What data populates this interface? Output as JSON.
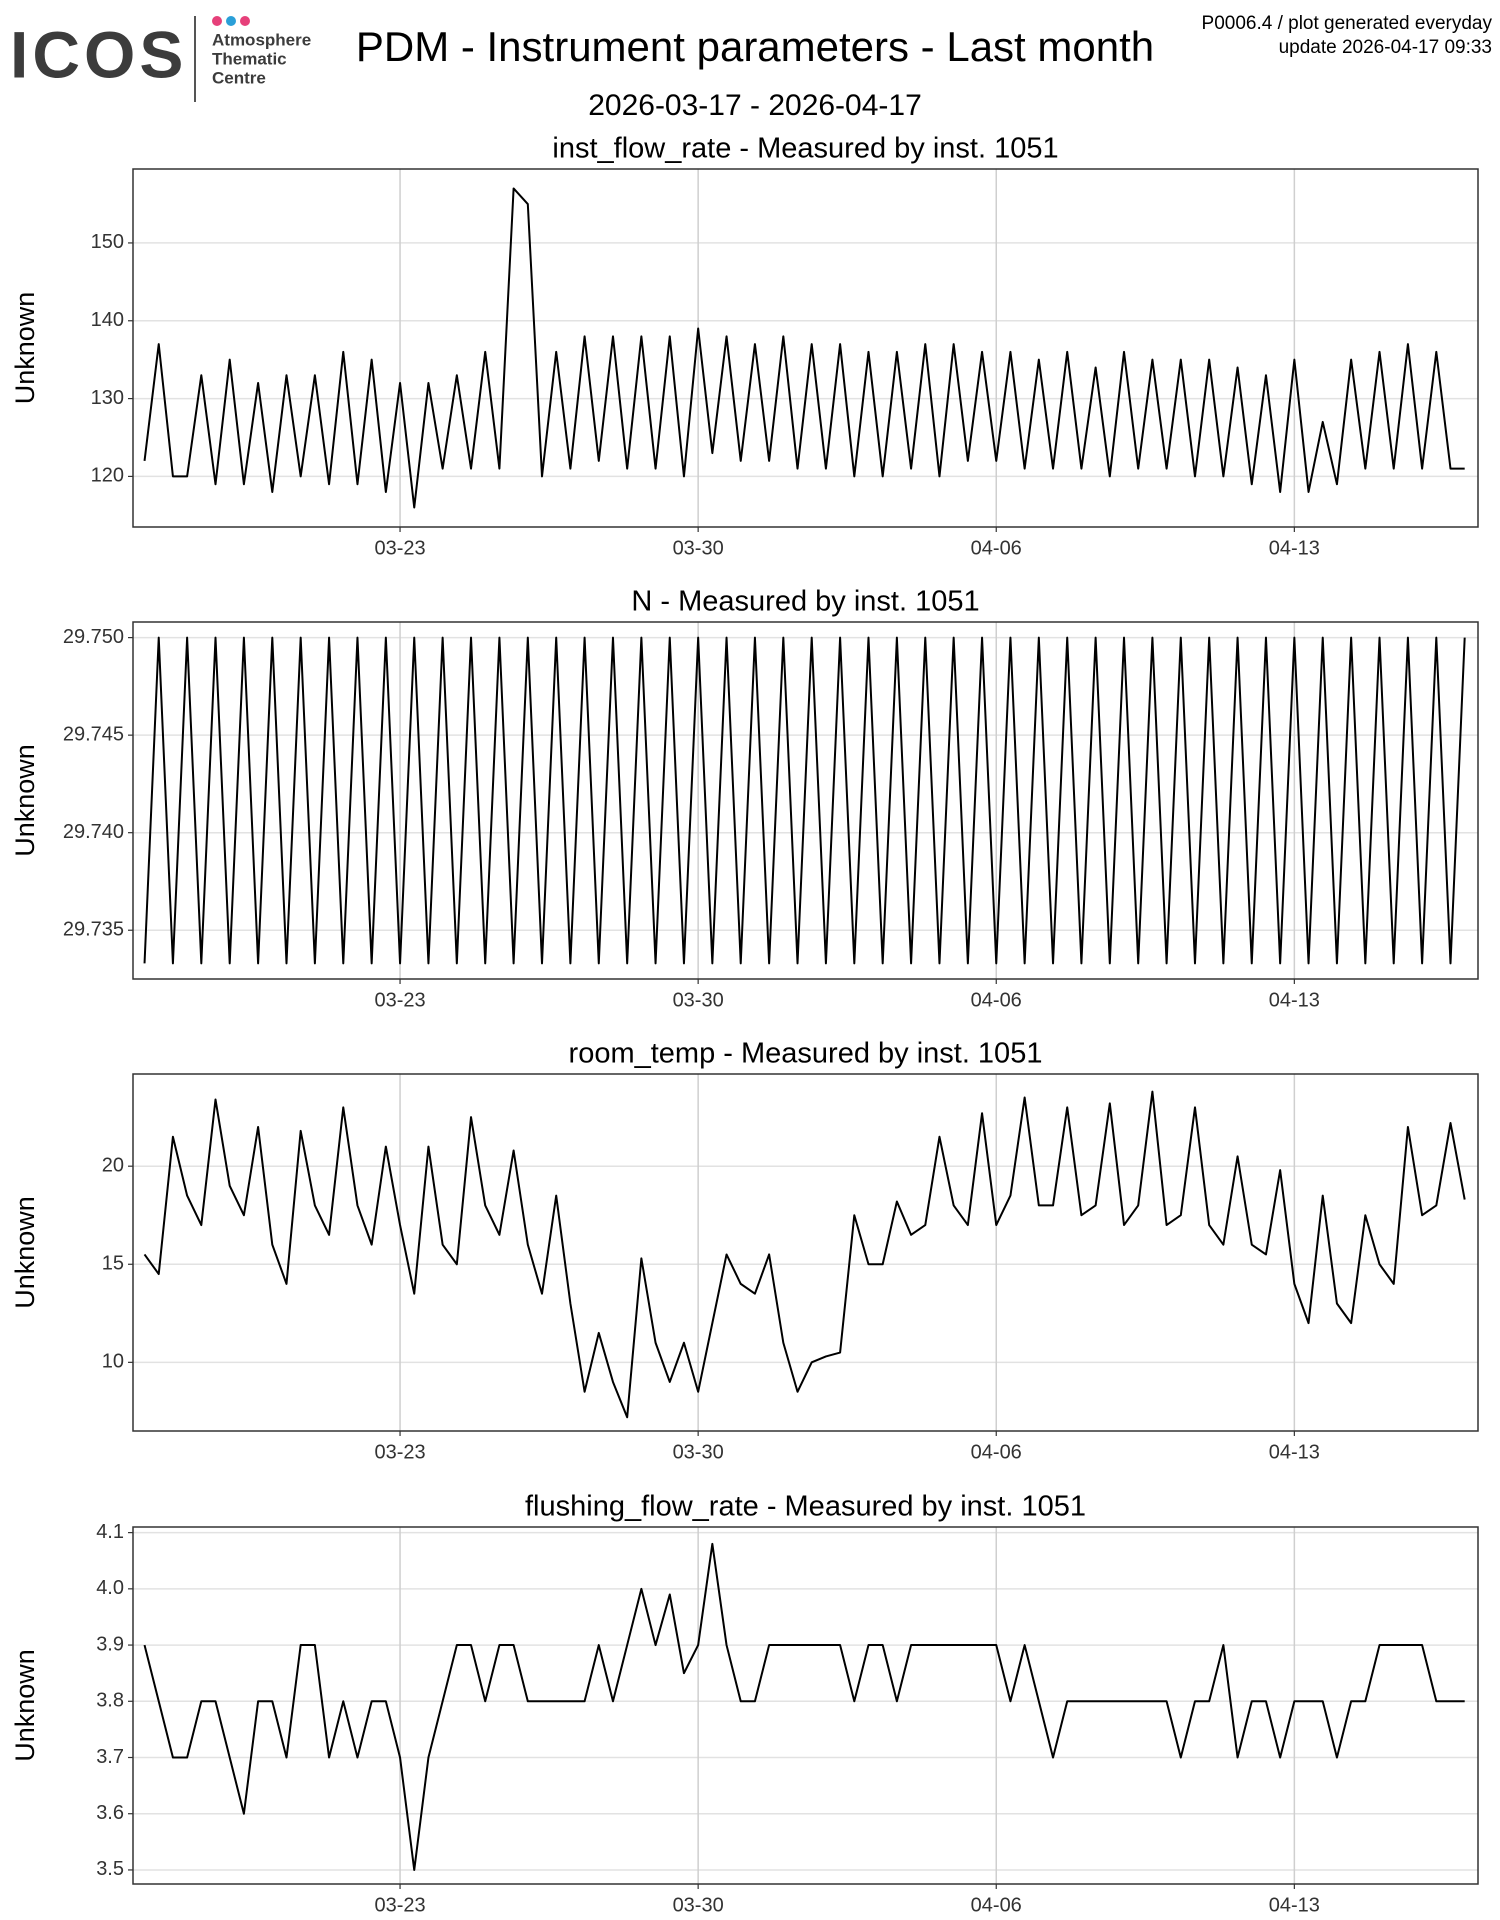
{
  "header": {
    "logo": "ICOS",
    "logo_subtitle": [
      "Atmosphere",
      "Thematic",
      "Centre"
    ],
    "title": "PDM - Instrument parameters - Last month",
    "subtitle": "2026-03-17 - 2026-04-17",
    "info": [
      "P0006.4 / plot generated everyday",
      "update  2026-04-17 09:33"
    ]
  },
  "chart_data": [
    {
      "type": "line",
      "title": "inst_flow_rate - Measured by inst. 1051",
      "y_label": "Unknown",
      "color": "#000000",
      "grid": true,
      "x": [
        "03-17 00:00",
        "03-17 08:00",
        "03-17 16:00",
        "03-18 00:00",
        "03-18 08:00",
        "03-18 16:00",
        "03-19 00:00",
        "03-19 08:00",
        "03-19 16:00",
        "03-20 00:00",
        "03-20 08:00",
        "03-20 16:00",
        "03-21 00:00",
        "03-21 08:00",
        "03-21 16:00",
        "03-22 00:00",
        "03-22 08:00",
        "03-22 16:00",
        "03-23 00:00",
        "03-23 08:00",
        "03-23 16:00",
        "03-24 00:00",
        "03-24 08:00",
        "03-24 16:00",
        "03-25 00:00",
        "03-25 08:00",
        "03-25 16:00",
        "03-26 00:00",
        "03-26 08:00",
        "03-26 16:00",
        "03-27 00:00",
        "03-27 08:00",
        "03-27 16:00",
        "03-28 00:00",
        "03-28 08:00",
        "03-28 16:00",
        "03-29 00:00",
        "03-29 08:00",
        "03-29 16:00",
        "03-30 00:00",
        "03-30 08:00",
        "03-30 16:00",
        "03-31 00:00",
        "03-31 08:00",
        "03-31 16:00",
        "04-01 00:00",
        "04-01 08:00",
        "04-01 16:00",
        "04-02 00:00",
        "04-02 08:00",
        "04-02 16:00",
        "04-03 00:00",
        "04-03 08:00",
        "04-03 16:00",
        "04-04 00:00",
        "04-04 08:00",
        "04-04 16:00",
        "04-05 00:00",
        "04-05 08:00",
        "04-05 16:00",
        "04-06 00:00",
        "04-06 08:00",
        "04-06 16:00",
        "04-07 00:00",
        "04-07 08:00",
        "04-07 16:00",
        "04-08 00:00",
        "04-08 08:00",
        "04-08 16:00",
        "04-09 00:00",
        "04-09 08:00",
        "04-09 16:00",
        "04-10 00:00",
        "04-10 08:00",
        "04-10 16:00",
        "04-11 00:00",
        "04-11 08:00",
        "04-11 16:00",
        "04-12 00:00",
        "04-12 08:00",
        "04-12 16:00",
        "04-13 00:00",
        "04-13 08:00",
        "04-13 16:00",
        "04-14 00:00",
        "04-14 08:00",
        "04-14 16:00",
        "04-15 00:00",
        "04-15 08:00",
        "04-15 16:00",
        "04-16 00:00",
        "04-16 08:00",
        "04-16 16:00",
        "04-17 00:00"
      ],
      "values": [
        122,
        137,
        120,
        120,
        133,
        119,
        135,
        119,
        132,
        118,
        133,
        120,
        133,
        119,
        136,
        119,
        135,
        118,
        132,
        116,
        132,
        121,
        133,
        121,
        136,
        121,
        157,
        155,
        120,
        136,
        121,
        138,
        122,
        138,
        121,
        138,
        121,
        138,
        120,
        139,
        123,
        138,
        122,
        137,
        122,
        138,
        121,
        137,
        121,
        137,
        120,
        136,
        120,
        136,
        121,
        137,
        120,
        137,
        122,
        136,
        122,
        136,
        121,
        135,
        121,
        136,
        121,
        134,
        120,
        136,
        121,
        135,
        121,
        135,
        120,
        135,
        120,
        134,
        119,
        133,
        118,
        135,
        118,
        127,
        119,
        135,
        121,
        136,
        121,
        137,
        121,
        136,
        121,
        121
      ],
      "xlim": [
        "03-16 17:30",
        "04-17 07:30"
      ],
      "xticks": [
        "03-23",
        "03-30",
        "04-06",
        "04-13"
      ],
      "ylim": [
        113.5,
        159.5
      ],
      "yticks": [
        120,
        130,
        140,
        150
      ]
    },
    {
      "type": "line",
      "title": "N - Measured by inst. 1051",
      "y_label": "Unknown",
      "color": "#000000",
      "grid": true,
      "x": [
        "03-17 00:00",
        "03-17 08:00",
        "03-17 16:00",
        "03-18 00:00",
        "03-18 08:00",
        "03-18 16:00",
        "03-19 00:00",
        "03-19 08:00",
        "03-19 16:00",
        "03-20 00:00",
        "03-20 08:00",
        "03-20 16:00",
        "03-21 00:00",
        "03-21 08:00",
        "03-21 16:00",
        "03-22 00:00",
        "03-22 08:00",
        "03-22 16:00",
        "03-23 00:00",
        "03-23 08:00",
        "03-23 16:00",
        "03-24 00:00",
        "03-24 08:00",
        "03-24 16:00",
        "03-25 00:00",
        "03-25 08:00",
        "03-25 16:00",
        "03-26 00:00",
        "03-26 08:00",
        "03-26 16:00",
        "03-27 00:00",
        "03-27 08:00",
        "03-27 16:00",
        "03-28 00:00",
        "03-28 08:00",
        "03-28 16:00",
        "03-29 00:00",
        "03-29 08:00",
        "03-29 16:00",
        "03-30 00:00",
        "03-30 08:00",
        "03-30 16:00",
        "03-31 00:00",
        "03-31 08:00",
        "03-31 16:00",
        "04-01 00:00",
        "04-01 08:00",
        "04-01 16:00",
        "04-02 00:00",
        "04-02 08:00",
        "04-02 16:00",
        "04-03 00:00",
        "04-03 08:00",
        "04-03 16:00",
        "04-04 00:00",
        "04-04 08:00",
        "04-04 16:00",
        "04-05 00:00",
        "04-05 08:00",
        "04-05 16:00",
        "04-06 00:00",
        "04-06 08:00",
        "04-06 16:00",
        "04-07 00:00",
        "04-07 08:00",
        "04-07 16:00",
        "04-08 00:00",
        "04-08 08:00",
        "04-08 16:00",
        "04-09 00:00",
        "04-09 08:00",
        "04-09 16:00",
        "04-10 00:00",
        "04-10 08:00",
        "04-10 16:00",
        "04-11 00:00",
        "04-11 08:00",
        "04-11 16:00",
        "04-12 00:00",
        "04-12 08:00",
        "04-12 16:00",
        "04-13 00:00",
        "04-13 08:00",
        "04-13 16:00",
        "04-14 00:00",
        "04-14 08:00",
        "04-14 16:00",
        "04-15 00:00",
        "04-15 08:00",
        "04-15 16:00",
        "04-16 00:00",
        "04-16 08:00",
        "04-16 16:00",
        "04-17 00:00"
      ],
      "values": [
        29.7333,
        29.75,
        29.7333,
        29.75,
        29.7333,
        29.75,
        29.7333,
        29.75,
        29.7333,
        29.75,
        29.7333,
        29.75,
        29.7333,
        29.75,
        29.7333,
        29.75,
        29.7333,
        29.75,
        29.7333,
        29.75,
        29.7333,
        29.75,
        29.7333,
        29.75,
        29.7333,
        29.75,
        29.7333,
        29.75,
        29.7333,
        29.75,
        29.7333,
        29.75,
        29.7333,
        29.75,
        29.7333,
        29.75,
        29.7333,
        29.75,
        29.7333,
        29.75,
        29.7333,
        29.75,
        29.7333,
        29.75,
        29.7333,
        29.75,
        29.7333,
        29.75,
        29.7333,
        29.75,
        29.7333,
        29.75,
        29.7333,
        29.75,
        29.7333,
        29.75,
        29.7333,
        29.75,
        29.7333,
        29.75,
        29.7333,
        29.75,
        29.7333,
        29.75,
        29.7333,
        29.75,
        29.7333,
        29.75,
        29.7333,
        29.75,
        29.7333,
        29.75,
        29.7333,
        29.75,
        29.7333,
        29.75,
        29.7333,
        29.75,
        29.7333,
        29.75,
        29.7333,
        29.75,
        29.7333,
        29.75,
        29.7333,
        29.75,
        29.7333,
        29.75,
        29.7333,
        29.75,
        29.7333,
        29.75,
        29.7333,
        29.75
      ],
      "xlim": [
        "03-16 17:30",
        "04-17 07:30"
      ],
      "xticks": [
        "03-23",
        "03-30",
        "04-06",
        "04-13"
      ],
      "ylim": [
        29.7325,
        29.7508
      ],
      "yticks": [
        29.735,
        {
          "value": 29.74,
          "label": "29.740"
        },
        29.745,
        {
          "value": 29.75,
          "label": "29.750"
        }
      ]
    },
    {
      "type": "line",
      "title": "room_temp - Measured by inst. 1051",
      "y_label": "Unknown",
      "color": "#000000",
      "grid": true,
      "x": [
        "03-17 00:00",
        "03-17 08:00",
        "03-17 16:00",
        "03-18 00:00",
        "03-18 08:00",
        "03-18 16:00",
        "03-19 00:00",
        "03-19 08:00",
        "03-19 16:00",
        "03-20 00:00",
        "03-20 08:00",
        "03-20 16:00",
        "03-21 00:00",
        "03-21 08:00",
        "03-21 16:00",
        "03-22 00:00",
        "03-22 08:00",
        "03-22 16:00",
        "03-23 00:00",
        "03-23 08:00",
        "03-23 16:00",
        "03-24 00:00",
        "03-24 08:00",
        "03-24 16:00",
        "03-25 00:00",
        "03-25 08:00",
        "03-25 16:00",
        "03-26 00:00",
        "03-26 08:00",
        "03-26 16:00",
        "03-27 00:00",
        "03-27 08:00",
        "03-27 16:00",
        "03-28 00:00",
        "03-28 08:00",
        "03-28 16:00",
        "03-29 00:00",
        "03-29 08:00",
        "03-29 16:00",
        "03-30 00:00",
        "03-30 08:00",
        "03-30 16:00",
        "03-31 00:00",
        "03-31 08:00",
        "03-31 16:00",
        "04-01 00:00",
        "04-01 08:00",
        "04-01 16:00",
        "04-02 00:00",
        "04-02 08:00",
        "04-02 16:00",
        "04-03 00:00",
        "04-03 08:00",
        "04-03 16:00",
        "04-04 00:00",
        "04-04 08:00",
        "04-04 16:00",
        "04-05 00:00",
        "04-05 08:00",
        "04-05 16:00",
        "04-06 00:00",
        "04-06 08:00",
        "04-06 16:00",
        "04-07 00:00",
        "04-07 08:00",
        "04-07 16:00",
        "04-08 00:00",
        "04-08 08:00",
        "04-08 16:00",
        "04-09 00:00",
        "04-09 08:00",
        "04-09 16:00",
        "04-10 00:00",
        "04-10 08:00",
        "04-10 16:00",
        "04-11 00:00",
        "04-11 08:00",
        "04-11 16:00",
        "04-12 00:00",
        "04-12 08:00",
        "04-12 16:00",
        "04-13 00:00",
        "04-13 08:00",
        "04-13 16:00",
        "04-14 00:00",
        "04-14 08:00",
        "04-14 16:00",
        "04-15 00:00",
        "04-15 08:00",
        "04-15 16:00",
        "04-16 00:00",
        "04-16 08:00",
        "04-16 16:00",
        "04-17 00:00"
      ],
      "values": [
        15.5,
        14.5,
        21.5,
        18.5,
        17,
        23.4,
        19,
        17.5,
        22,
        16,
        14,
        21.8,
        18,
        16.5,
        23,
        18,
        16,
        21,
        17,
        13.5,
        21,
        16,
        15,
        22.5,
        18,
        16.5,
        20.8,
        16,
        13.5,
        18.5,
        13,
        8.5,
        11.5,
        9,
        7.2,
        15.3,
        11,
        9,
        11,
        8.5,
        12,
        15.5,
        14,
        13.5,
        15.5,
        11,
        8.5,
        10,
        10.3,
        10.5,
        17.5,
        15,
        15,
        18.2,
        16.5,
        17,
        21.5,
        18,
        17,
        22.7,
        17,
        18.5,
        23.5,
        18,
        18,
        23,
        17.5,
        18,
        23.2,
        17,
        18,
        23.8,
        17,
        17.5,
        23,
        17,
        16,
        20.5,
        16,
        15.5,
        19.8,
        14,
        12,
        18.5,
        13,
        12,
        17.5,
        15,
        14,
        22,
        17.5,
        18,
        22.2,
        18.3
      ],
      "xlim": [
        "03-16 17:30",
        "04-17 07:30"
      ],
      "xticks": [
        "03-23",
        "03-30",
        "04-06",
        "04-13"
      ],
      "ylim": [
        6.5,
        24.7
      ],
      "yticks": [
        10,
        15,
        20
      ]
    },
    {
      "type": "line",
      "title": "flushing_flow_rate - Measured by inst. 1051",
      "y_label": "Unknown",
      "color": "#000000",
      "grid": true,
      "x": [
        "03-17 00:00",
        "03-17 08:00",
        "03-17 16:00",
        "03-18 00:00",
        "03-18 08:00",
        "03-18 16:00",
        "03-19 00:00",
        "03-19 08:00",
        "03-19 16:00",
        "03-20 00:00",
        "03-20 08:00",
        "03-20 16:00",
        "03-21 00:00",
        "03-21 08:00",
        "03-21 16:00",
        "03-22 00:00",
        "03-22 08:00",
        "03-22 16:00",
        "03-23 00:00",
        "03-23 08:00",
        "03-23 16:00",
        "03-24 00:00",
        "03-24 08:00",
        "03-24 16:00",
        "03-25 00:00",
        "03-25 08:00",
        "03-25 16:00",
        "03-26 00:00",
        "03-26 08:00",
        "03-26 16:00",
        "03-27 00:00",
        "03-27 08:00",
        "03-27 16:00",
        "03-28 00:00",
        "03-28 08:00",
        "03-28 16:00",
        "03-29 00:00",
        "03-29 08:00",
        "03-29 16:00",
        "03-30 00:00",
        "03-30 08:00",
        "03-30 16:00",
        "03-31 00:00",
        "03-31 08:00",
        "03-31 16:00",
        "04-01 00:00",
        "04-01 08:00",
        "04-01 16:00",
        "04-02 00:00",
        "04-02 08:00",
        "04-02 16:00",
        "04-03 00:00",
        "04-03 08:00",
        "04-03 16:00",
        "04-04 00:00",
        "04-04 08:00",
        "04-04 16:00",
        "04-05 00:00",
        "04-05 08:00",
        "04-05 16:00",
        "04-06 00:00",
        "04-06 08:00",
        "04-06 16:00",
        "04-07 00:00",
        "04-07 08:00",
        "04-07 16:00",
        "04-08 00:00",
        "04-08 08:00",
        "04-08 16:00",
        "04-09 00:00",
        "04-09 08:00",
        "04-09 16:00",
        "04-10 00:00",
        "04-10 08:00",
        "04-10 16:00",
        "04-11 00:00",
        "04-11 08:00",
        "04-11 16:00",
        "04-12 00:00",
        "04-12 08:00",
        "04-12 16:00",
        "04-13 00:00",
        "04-13 08:00",
        "04-13 16:00",
        "04-14 00:00",
        "04-14 08:00",
        "04-14 16:00",
        "04-15 00:00",
        "04-15 08:00",
        "04-15 16:00",
        "04-16 00:00",
        "04-16 08:00",
        "04-16 16:00",
        "04-17 00:00"
      ],
      "values": [
        3.9,
        3.8,
        3.7,
        3.7,
        3.8,
        3.8,
        3.7,
        3.6,
        3.8,
        3.8,
        3.7,
        3.9,
        3.9,
        3.7,
        3.8,
        3.7,
        3.8,
        3.8,
        3.7,
        3.5,
        3.7,
        3.8,
        3.9,
        3.9,
        3.8,
        3.9,
        3.9,
        3.8,
        3.8,
        3.8,
        3.8,
        3.8,
        3.9,
        3.8,
        3.9,
        4.0,
        3.9,
        3.99,
        3.85,
        3.9,
        4.08,
        3.9,
        3.8,
        3.8,
        3.9,
        3.9,
        3.9,
        3.9,
        3.9,
        3.9,
        3.8,
        3.9,
        3.9,
        3.8,
        3.9,
        3.9,
        3.9,
        3.9,
        3.9,
        3.9,
        3.9,
        3.8,
        3.9,
        3.8,
        3.7,
        3.8,
        3.8,
        3.8,
        3.8,
        3.8,
        3.8,
        3.8,
        3.8,
        3.7,
        3.8,
        3.8,
        3.9,
        3.7,
        3.8,
        3.8,
        3.7,
        3.8,
        3.8,
        3.8,
        3.7,
        3.8,
        3.8,
        3.9,
        3.9,
        3.9,
        3.9,
        3.8,
        3.8,
        3.8
      ],
      "xlim": [
        "03-16 17:30",
        "04-17 07:30"
      ],
      "xticks": [
        "03-23",
        "03-30",
        "04-06",
        "04-13"
      ],
      "ylim": [
        3.475,
        4.11
      ],
      "yticks": [
        3.5,
        3.6,
        3.7,
        3.8,
        3.9,
        {
          "value": 4.0,
          "label": "4.0"
        },
        4.1
      ]
    }
  ]
}
